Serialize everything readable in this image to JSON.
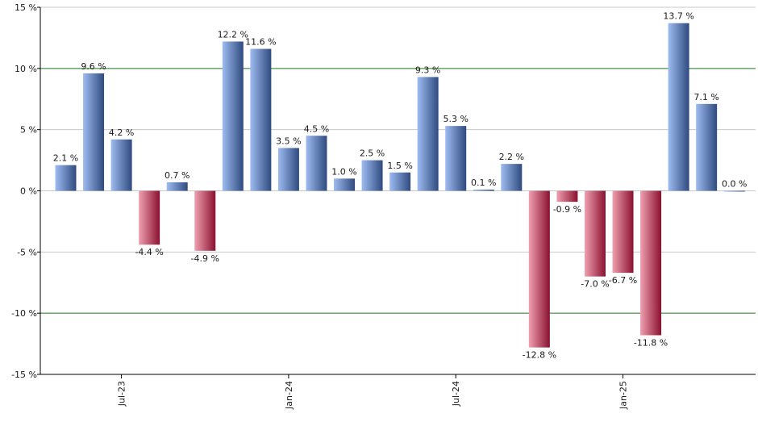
{
  "chart_data": {
    "type": "bar",
    "title": "",
    "xlabel": "",
    "ylabel": "",
    "ylim": [
      -15,
      15
    ],
    "y_ticks": [
      15,
      10,
      5,
      0,
      -5,
      -10,
      -15
    ],
    "y_tick_labels": [
      "15 %",
      "10 %",
      "5 %",
      "0 %",
      "-5 %",
      "-10 %",
      "-15 %"
    ],
    "highlight_lines": [
      10,
      -10
    ],
    "x_tick_labels": [
      {
        "label": "Jul-23",
        "index": 2
      },
      {
        "label": "Jan-24",
        "index": 8
      },
      {
        "label": "Jul-24",
        "index": 14
      },
      {
        "label": "Jan-25",
        "index": 20
      }
    ],
    "values": [
      2.1,
      9.6,
      4.2,
      -4.4,
      0.7,
      -4.9,
      12.2,
      11.6,
      3.5,
      4.5,
      1.0,
      2.5,
      1.5,
      9.3,
      5.3,
      0.1,
      2.2,
      -12.8,
      -0.9,
      -7.0,
      -6.7,
      -11.8,
      13.7,
      7.1,
      0.0
    ],
    "value_labels": [
      "2.1 %",
      "9.6 %",
      "4.2 %",
      "-4.4 %",
      "0.7 %",
      "-4.9 %",
      "12.2 %",
      "11.6 %",
      "3.5 %",
      "4.5 %",
      "1.0 %",
      "2.5 %",
      "1.5 %",
      "9.3 %",
      "5.3 %",
      "0.1 %",
      "2.2 %",
      "-12.8 %",
      "-0.9 %",
      "-7.0 %",
      "-6.7 %",
      "-11.8 %",
      "13.7 %",
      "7.1 %",
      "0.0 %"
    ],
    "grid": true,
    "colors": {
      "positive_light": "#9fbcf2",
      "positive_dark": "#2e4a7e",
      "negative_light": "#f0a0b0",
      "negative_dark": "#8a1030",
      "grid": "#c8c8c8",
      "highlight_line": "#1a7a1a",
      "axis": "#000000"
    }
  }
}
